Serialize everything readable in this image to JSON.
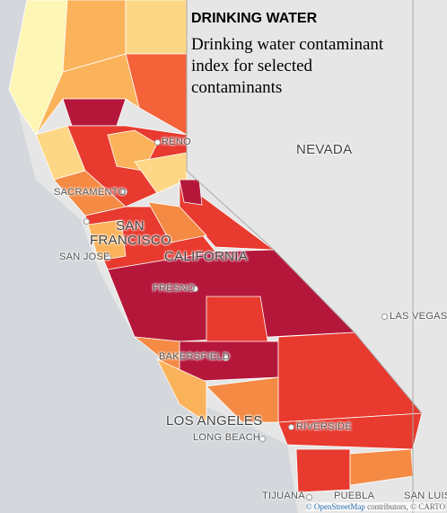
{
  "title": "DRINKING WATER",
  "subtitle": "Drinking water contaminant index for selected contaminants",
  "places": [
    "RENO",
    "NEVADA",
    "SACRAMENTO",
    "SAN FRANCISCO",
    "SAN JOSE",
    "CALIFORNIA",
    "FRESNO",
    "LAS VEGAS",
    "BAKERSFIELD",
    "LOS ANGELES",
    "LONG BEACH",
    "RIVERSIDE",
    "TIJUANA",
    "PUEBLA",
    "SAN LUIS"
  ],
  "attribution": {
    "osm": "© OpenStreetMap",
    "rest": "contributors, © CARTO"
  }
}
